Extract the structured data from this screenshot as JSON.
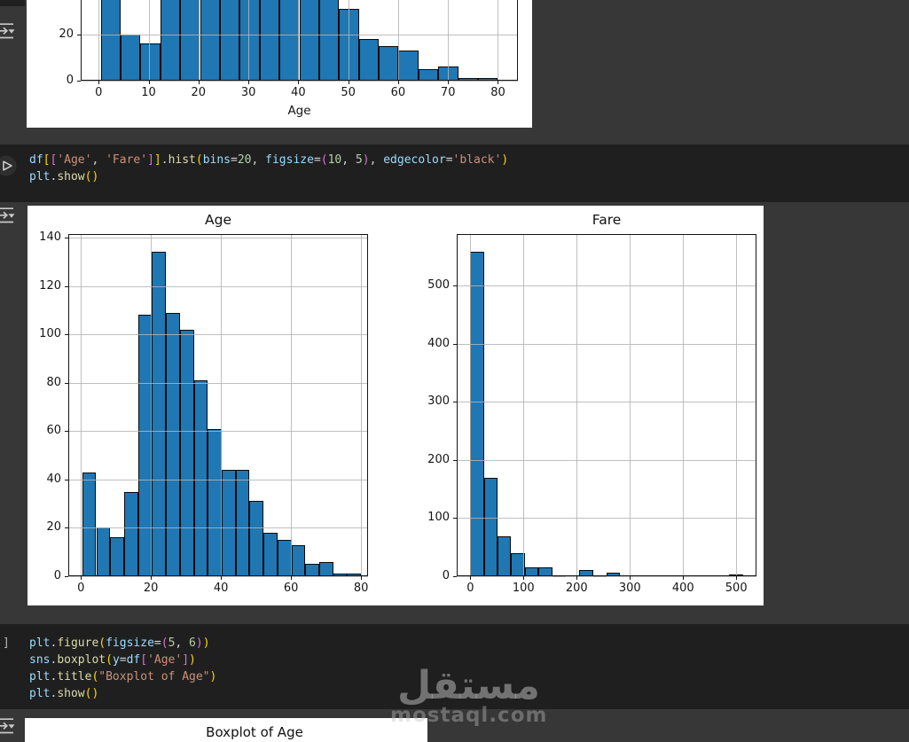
{
  "watermark": {
    "arabic_text": "مستقل",
    "domain_text": "mostaql.com"
  },
  "boxplot_output": {
    "title": "Boxplot of Age"
  },
  "colors": {
    "page_bg": "#373737",
    "code_cell_bg": "#1f1f1f",
    "bar_fill": "#1f77b4",
    "bar_edge": "#000000",
    "grid": "#b0b0b0",
    "tokens": {
      "variable": "#9CDCFE",
      "function": "#DCDCAA",
      "string": "#CE9178",
      "number": "#B5CEA8",
      "operator": "#D4D4D4",
      "bracket1": "#FFD700",
      "bracket2": "#DA70D6"
    }
  },
  "code_cells": [
    {
      "gutter_text": "",
      "source": "df[['Age', 'Fare']].hist(bins=20, figsize=(10, 5), edgecolor='black')\nplt.show()",
      "lines": [
        [
          [
            "df",
            "var"
          ],
          [
            "[",
            "b1"
          ],
          [
            "[",
            "b2"
          ],
          [
            "'Age'",
            "str"
          ],
          [
            ", ",
            "op"
          ],
          [
            "'Fare'",
            "str"
          ],
          [
            "]",
            "b2"
          ],
          [
            "]",
            "b1"
          ],
          [
            ".",
            "op"
          ],
          [
            "hist",
            "fn"
          ],
          [
            "(",
            "b1"
          ],
          [
            "bins",
            "var"
          ],
          [
            "=",
            "op"
          ],
          [
            "20",
            "num"
          ],
          [
            ", ",
            "op"
          ],
          [
            "figsize",
            "var"
          ],
          [
            "=",
            "op"
          ],
          [
            "(",
            "b2"
          ],
          [
            "10",
            "num"
          ],
          [
            ", ",
            "op"
          ],
          [
            "5",
            "num"
          ],
          [
            ")",
            "b2"
          ],
          [
            ", ",
            "op"
          ],
          [
            "edgecolor",
            "var"
          ],
          [
            "=",
            "op"
          ],
          [
            "'black'",
            "str"
          ],
          [
            ")",
            "b1"
          ]
        ],
        [
          [
            "plt",
            "var"
          ],
          [
            ".",
            "op"
          ],
          [
            "show",
            "fn"
          ],
          [
            "(",
            "b1"
          ],
          [
            ")",
            "b1"
          ]
        ]
      ]
    },
    {
      "gutter_text": "]",
      "source": "plt.figure(figsize=(5, 6))\nsns.boxplot(y=df['Age'])\nplt.title(\"Boxplot of Age\")\nplt.show()",
      "lines": [
        [
          [
            "plt",
            "var"
          ],
          [
            ".",
            "op"
          ],
          [
            "figure",
            "fn"
          ],
          [
            "(",
            "b1"
          ],
          [
            "figsize",
            "var"
          ],
          [
            "=",
            "op"
          ],
          [
            "(",
            "b2"
          ],
          [
            "5",
            "num"
          ],
          [
            ", ",
            "op"
          ],
          [
            "6",
            "num"
          ],
          [
            ")",
            "b2"
          ],
          [
            ")",
            "b1"
          ]
        ],
        [
          [
            "sns",
            "var"
          ],
          [
            ".",
            "op"
          ],
          [
            "boxplot",
            "fn"
          ],
          [
            "(",
            "b1"
          ],
          [
            "y",
            "var"
          ],
          [
            "=",
            "op"
          ],
          [
            "df",
            "var"
          ],
          [
            "[",
            "b2"
          ],
          [
            "'Age'",
            "str"
          ],
          [
            "]",
            "b2"
          ],
          [
            ")",
            "b1"
          ]
        ],
        [
          [
            "plt",
            "var"
          ],
          [
            ".",
            "op"
          ],
          [
            "title",
            "fn"
          ],
          [
            "(",
            "b1"
          ],
          [
            "\"Boxplot of Age\"",
            "str"
          ],
          [
            ")",
            "b1"
          ]
        ],
        [
          [
            "plt",
            "var"
          ],
          [
            ".",
            "op"
          ],
          [
            "show",
            "fn"
          ],
          [
            "(",
            "b1"
          ],
          [
            ")",
            "b1"
          ]
        ]
      ]
    }
  ],
  "chart_data": [
    {
      "id": "age_partial",
      "type": "bar",
      "title": "",
      "xlabel": "Age",
      "ylabel": "",
      "note": "histogram cropped at top of screenshot; only region y<~36 visible",
      "bin_start": 0.4,
      "bin_width": 3.98,
      "counts": [
        43,
        20,
        16,
        35,
        108,
        134,
        109,
        102,
        81,
        61,
        44,
        44,
        31,
        18,
        15,
        13,
        5,
        6,
        1,
        1
      ],
      "xlim": [
        -3.6,
        84
      ],
      "ylim": [
        0,
        141.5
      ],
      "xticks": [
        0,
        10,
        20,
        30,
        40,
        50,
        60,
        70,
        80
      ],
      "yticks": [
        0,
        20,
        40,
        60,
        80,
        100,
        120,
        140
      ],
      "grid": true,
      "legend": false
    },
    {
      "id": "age",
      "type": "bar",
      "title": "Age",
      "xlabel": "",
      "ylabel": "",
      "bin_start": 0.4,
      "bin_width": 3.98,
      "counts": [
        43,
        20,
        16,
        35,
        108,
        134,
        109,
        102,
        81,
        61,
        44,
        44,
        31,
        18,
        15,
        13,
        5,
        6,
        1,
        1
      ],
      "xlim": [
        -3.6,
        82
      ],
      "ylim": [
        0,
        141.5
      ],
      "xticks": [
        0,
        20,
        40,
        60,
        80
      ],
      "yticks": [
        0,
        20,
        40,
        60,
        80,
        100,
        120,
        140
      ],
      "grid": true,
      "legend": false
    },
    {
      "id": "fare",
      "type": "bar",
      "title": "Fare",
      "xlabel": "",
      "ylabel": "",
      "bin_start": 0,
      "bin_width": 25.62,
      "counts": [
        558,
        170,
        68,
        40,
        16,
        16,
        2,
        0,
        10,
        2,
        6,
        0,
        0,
        0,
        0,
        0,
        0,
        0,
        0,
        3
      ],
      "xlim": [
        -25.6,
        538
      ],
      "ylim": [
        0,
        589
      ],
      "xticks": [
        0,
        100,
        200,
        300,
        400,
        500
      ],
      "yticks": [
        0,
        100,
        200,
        300,
        400,
        500
      ],
      "grid": true,
      "legend": false
    }
  ]
}
